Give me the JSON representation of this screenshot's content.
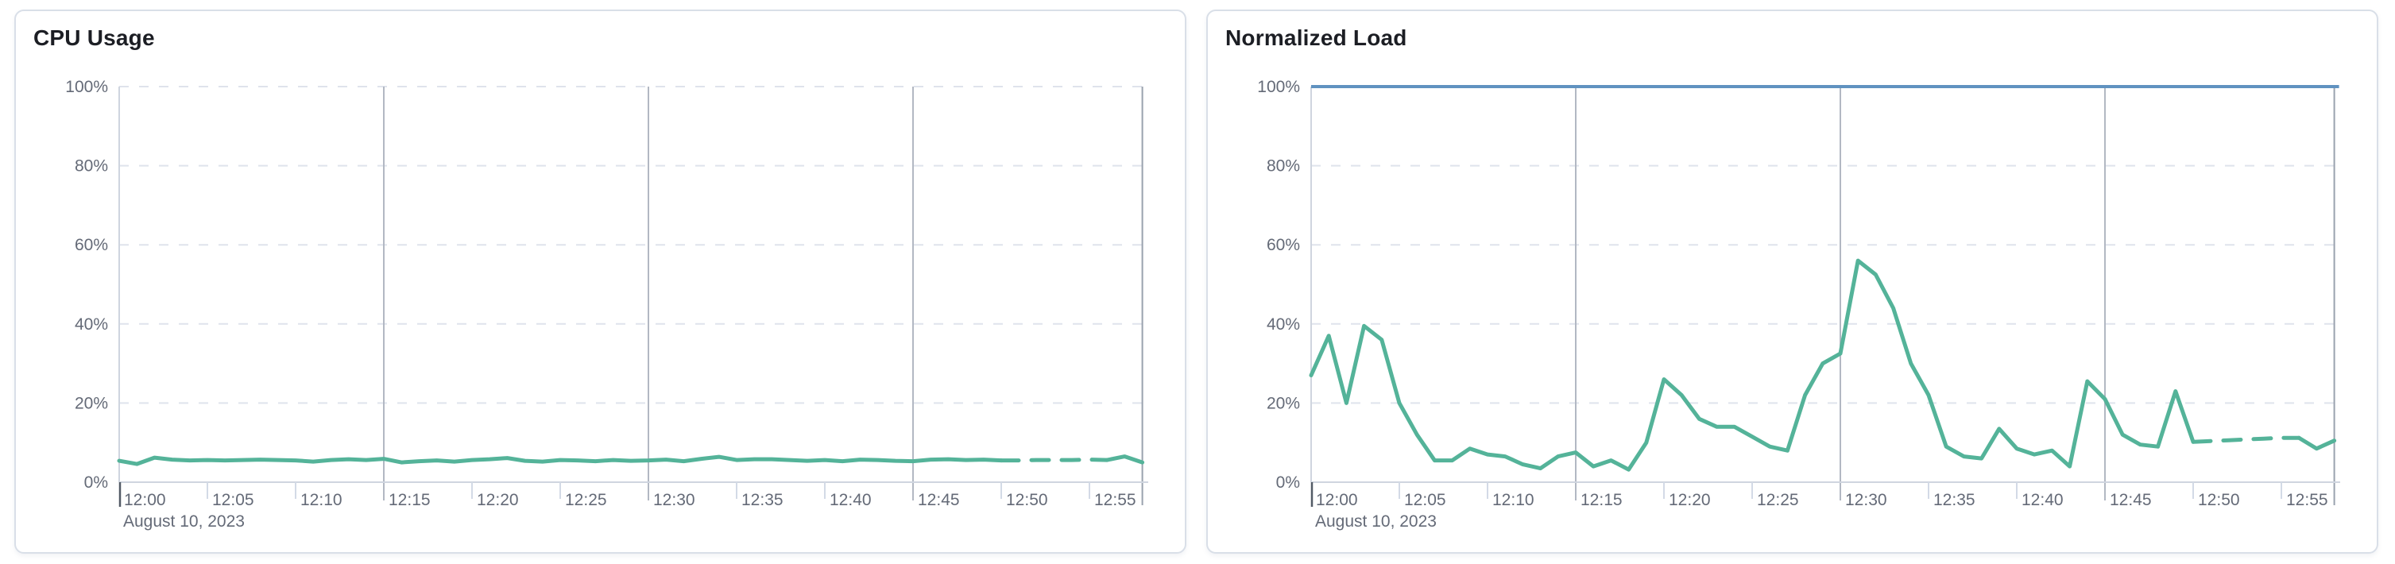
{
  "chart_data": [
    {
      "type": "line",
      "title": "CPU Usage",
      "x_axis": {
        "start_label": "12:00",
        "interval_minutes": 1,
        "tick_every_minutes": 5,
        "tick_labels": [
          "12:00",
          "12:05",
          "12:10",
          "12:15",
          "12:20",
          "12:25",
          "12:30",
          "12:35",
          "12:40",
          "12:45",
          "12:50",
          "12:55"
        ],
        "date_label": "August 10, 2023",
        "major_gridline_minutes": [
          15,
          30,
          45
        ],
        "end_line_minute": 58
      },
      "y_axis": {
        "min": 0,
        "max": 100,
        "tick_step": 20,
        "tick_labels": [
          "0%",
          "20%",
          "40%",
          "60%",
          "80%",
          "100%"
        ]
      },
      "threshold": null,
      "series": [
        {
          "name": "CPU usage",
          "color": "#54b399",
          "values": [
            5.4,
            4.6,
            6.2,
            5.7,
            5.5,
            5.6,
            5.5,
            5.6,
            5.7,
            5.6,
            5.5,
            5.2,
            5.6,
            5.8,
            5.6,
            5.9,
            5.0,
            5.3,
            5.5,
            5.2,
            5.6,
            5.8,
            6.1,
            5.4,
            5.2,
            5.6,
            5.5,
            5.3,
            5.6,
            5.4,
            5.5,
            5.7,
            5.3,
            5.9,
            6.4,
            5.6,
            5.8,
            5.8,
            5.6,
            5.4,
            5.6,
            5.3,
            5.7,
            5.6,
            5.4,
            5.3,
            5.7,
            5.8,
            5.6,
            5.7,
            5.5,
            5.5,
            5.6,
            5.6,
            5.6,
            5.7,
            5.6,
            6.5,
            5.0
          ],
          "segments": [
            {
              "from": 0,
              "to": 50,
              "style": "solid"
            },
            {
              "from": 50,
              "to": 56,
              "style": "dashed"
            },
            {
              "from": 56,
              "to": 58,
              "style": "solid"
            }
          ]
        }
      ]
    },
    {
      "type": "line",
      "title": "Normalized Load",
      "x_axis": {
        "start_label": "12:00",
        "interval_minutes": 1,
        "tick_every_minutes": 5,
        "tick_labels": [
          "12:00",
          "12:05",
          "12:10",
          "12:15",
          "12:20",
          "12:25",
          "12:30",
          "12:35",
          "12:40",
          "12:45",
          "12:50",
          "12:55"
        ],
        "date_label": "August 10, 2023",
        "major_gridline_minutes": [
          15,
          30,
          45
        ],
        "end_line_minute": 58
      },
      "y_axis": {
        "min": 0,
        "max": 100,
        "tick_step": 20,
        "tick_labels": [
          "0%",
          "20%",
          "40%",
          "60%",
          "80%",
          "100%"
        ]
      },
      "threshold": {
        "value": 100,
        "color": "#6092c0"
      },
      "series": [
        {
          "name": "Normalized load",
          "color": "#54b399",
          "values": [
            27,
            37,
            20,
            39.5,
            36,
            20,
            12,
            5.5,
            5.5,
            8.5,
            7,
            6.5,
            4.5,
            3.5,
            6.5,
            7.5,
            4,
            5.5,
            3.2,
            10,
            26,
            22,
            16,
            14,
            14,
            11.5,
            9,
            8,
            22,
            30,
            32.5,
            56,
            52.5,
            44,
            30,
            22,
            9,
            6.5,
            6,
            13.5,
            8.5,
            7,
            8,
            4,
            25.5,
            21,
            12,
            9.5,
            9,
            23,
            10.2,
            10.4,
            10.6,
            10.8,
            11,
            11.2,
            11.2,
            8.5,
            10.5
          ],
          "segments": [
            {
              "from": 0,
              "to": 50,
              "style": "solid"
            },
            {
              "from": 50,
              "to": 56,
              "style": "dashed"
            },
            {
              "from": 56,
              "to": 58,
              "style": "solid"
            }
          ]
        }
      ]
    }
  ],
  "style_colors": {
    "grid_dashed": "#dfe3ec",
    "axis_line": "#cfd5df",
    "major_gridline": "#b2b8c3",
    "end_line": "#9aa2ae",
    "start_tick": "#535b66",
    "minor_tick": "#d3dae6",
    "axis_label": "#646a77",
    "title": "#1c1e24"
  }
}
